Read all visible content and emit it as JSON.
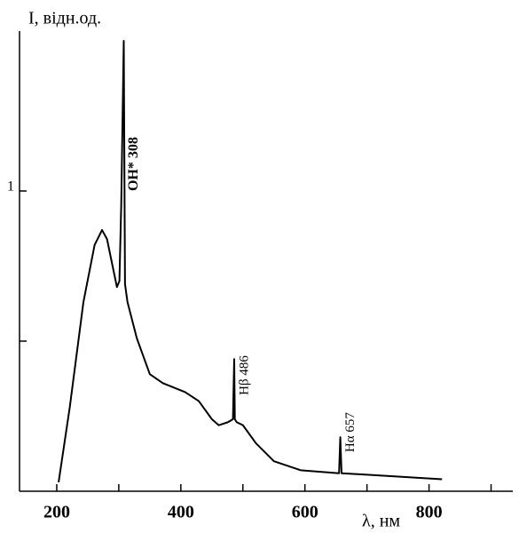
{
  "chart_data": {
    "type": "line",
    "y_label": "I, відн.од.",
    "x_label": "λ, нм",
    "xlim": [
      140,
      935
    ],
    "ylim": [
      0,
      1.5
    ],
    "xticks": [
      200,
      400,
      600,
      800
    ],
    "xminor_ticks": [
      300,
      500,
      700,
      900
    ],
    "yticks": [
      1
    ],
    "yminor_ticks": [
      0.5
    ],
    "series": [
      {
        "color": "#000000",
        "x": [
          203,
          221,
          243,
          261,
          273,
          281,
          290,
          297,
          301,
          304,
          308,
          310,
          314,
          329,
          350,
          371,
          407,
          429,
          450,
          461,
          476,
          484,
          486,
          487,
          490,
          500,
          521,
          550,
          593,
          655,
          657,
          659,
          700,
          821
        ],
        "values": [
          0.03,
          0.28,
          0.63,
          0.82,
          0.87,
          0.84,
          0.75,
          0.68,
          0.7,
          0.96,
          1.5,
          0.69,
          0.63,
          0.51,
          0.39,
          0.36,
          0.33,
          0.3,
          0.24,
          0.22,
          0.23,
          0.24,
          0.44,
          0.24,
          0.23,
          0.22,
          0.16,
          0.1,
          0.07,
          0.06,
          0.18,
          0.06,
          0.055,
          0.04
        ]
      }
    ],
    "annotations": [
      {
        "text": "OH* 308",
        "x": 308,
        "y": 1.0
      },
      {
        "text": "Hβ 486",
        "x": 486,
        "y": 0.32
      },
      {
        "text": "Hα 657",
        "x": 657,
        "y": 0.13
      }
    ]
  }
}
